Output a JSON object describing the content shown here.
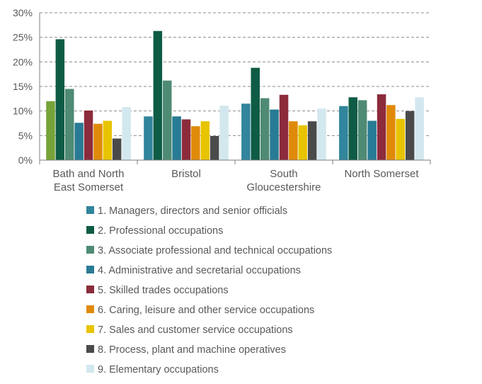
{
  "chart_data": {
    "type": "bar",
    "categories": [
      [
        "Bath and North",
        "East Somerset"
      ],
      [
        "Bristol"
      ],
      [
        "South",
        "Gloucestershire"
      ],
      [
        "North Somerset"
      ]
    ],
    "y_ticks": [
      "0%",
      "5%",
      "10%",
      "15%",
      "20%",
      "25%",
      "30%"
    ],
    "ylim": [
      0,
      30
    ],
    "grid": "horizontal dashed",
    "legend_position": "bottom",
    "series": [
      {
        "name": "1. Managers, directors and senior officials",
        "color": "#31859C",
        "values": [
          12.0,
          8.9,
          11.5,
          11.0
        ]
      },
      {
        "name": "2. Professional occupations",
        "color": "#0E5C45",
        "values": [
          24.6,
          26.3,
          18.8,
          12.8
        ]
      },
      {
        "name": "3. Associate professional and technical occupations",
        "color": "#4F8B74",
        "values": [
          14.5,
          16.2,
          12.6,
          12.2
        ]
      },
      {
        "name": "4. Administrative and secretarial occupations",
        "color": "#287B94",
        "values": [
          7.6,
          8.9,
          10.3,
          8.0
        ]
      },
      {
        "name": "5. Skilled trades occupations",
        "color": "#8C2B3B",
        "values": [
          10.1,
          8.3,
          13.3,
          13.4
        ]
      },
      {
        "name": "6. Caring, leisure and other service occupations",
        "color": "#E08A0A",
        "values": [
          7.4,
          6.9,
          7.9,
          11.2
        ]
      },
      {
        "name": "7. Sales and customer service occupations",
        "color": "#E8C400",
        "values": [
          8.0,
          7.9,
          7.1,
          8.4
        ]
      },
      {
        "name": "8. Process, plant and machine operatives",
        "color": "#4A4A4A",
        "values": [
          4.4,
          4.9,
          7.9,
          10.0
        ]
      },
      {
        "name": "9. Elementary occupations",
        "color": "#D3E8EE",
        "values": [
          10.8,
          11.1,
          10.5,
          12.8
        ]
      }
    ],
    "first_bar_color": "#77A33A"
  }
}
